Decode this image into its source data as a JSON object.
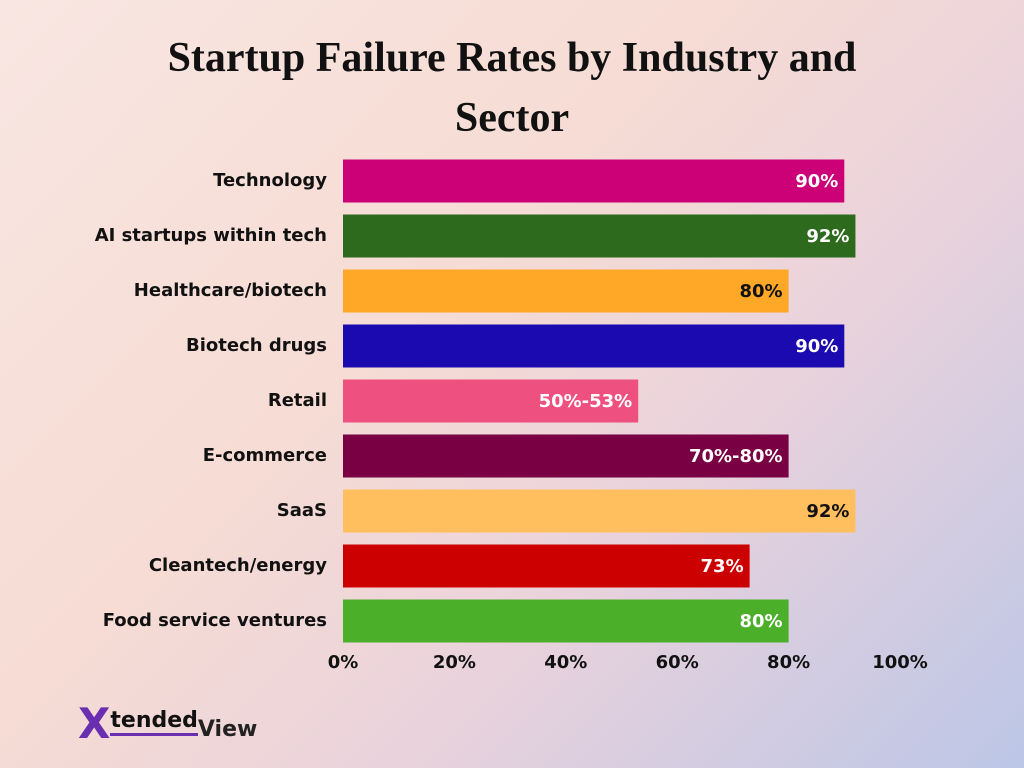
{
  "chart_data": {
    "type": "hbar",
    "title": "Startup Failure Rates by Industry and Sector",
    "categories": [
      "Technology",
      "AI startups within tech",
      "Healthcare/biotech",
      "Biotech drugs",
      "Retail",
      "E-commerce",
      "SaaS",
      "Cleantech/energy",
      "Food service ventures"
    ],
    "values": [
      90,
      92,
      80,
      90,
      53,
      80,
      92,
      73,
      80
    ],
    "value_labels": [
      "90%",
      "92%",
      "80%",
      "90%",
      "50%-53%",
      "70%-80%",
      "92%",
      "73%",
      "80%"
    ],
    "colors": [
      "#cc0077",
      "#2e6a1e",
      "#ffa726",
      "#1a0ab0",
      "#ee5080",
      "#7a0044",
      "#ffbf5e",
      "#cc0000",
      "#4caf2a"
    ],
    "xlim": [
      0,
      100
    ],
    "xticks": [
      {
        "value": 0,
        "label": "0%"
      },
      {
        "value": 20,
        "label": "20%"
      },
      {
        "value": 40,
        "label": "40%"
      },
      {
        "value": 60,
        "label": "60%"
      },
      {
        "value": 80,
        "label": "80%"
      },
      {
        "value": 100,
        "label": "100%"
      }
    ],
    "grid": false
  },
  "logo": {
    "mark": "X",
    "word1": "tended",
    "word2": "View"
  }
}
